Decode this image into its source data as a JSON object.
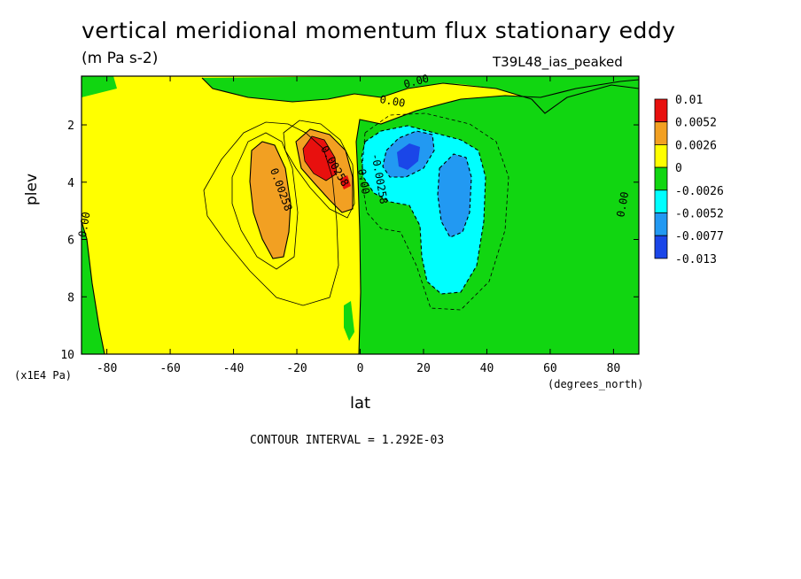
{
  "chart_data": {
    "type": "contour",
    "title": "vertical meridional momentum flux stationary eddy",
    "units": "(m Pa s-2)",
    "run_label": "T39L48_ias_peaked",
    "xlabel": "lat",
    "x_units": "(degrees_north)",
    "ylabel": "plev",
    "y_units": "(x1E4 Pa)",
    "xlim": [
      -88,
      88
    ],
    "ylim": [
      10,
      0.3
    ],
    "x_ticks": [
      -80,
      -60,
      -40,
      -20,
      0,
      20,
      40,
      60,
      80
    ],
    "y_ticks": [
      2,
      4,
      6,
      8,
      10
    ],
    "contour_interval_text": "CONTOUR INTERVAL = 1.292E-03",
    "legend": {
      "labels": [
        "0.01",
        "0.0052",
        "0.0026",
        "0",
        "-0.0026",
        "-0.0052",
        "-0.0077",
        "-0.013"
      ],
      "colors": [
        "#e8100e",
        "#f2a022",
        "#ffff00",
        "#11d611",
        "#00ffff",
        "#2299f2",
        "#1a46e8"
      ]
    },
    "contour_labels": [
      {
        "text": "0.00",
        "x": 18,
        "y": 0.6
      },
      {
        "text": "0.00",
        "x": 10,
        "y": 1.3
      },
      {
        "text": "0.00",
        "x": -86,
        "y": 5.5
      },
      {
        "text": "0.00",
        "x": 84,
        "y": 4.8
      },
      {
        "text": "0.00258",
        "x": -26,
        "y": 4.3
      },
      {
        "text": "0.00258",
        "x": -9,
        "y": 3.5
      },
      {
        "text": "-0.00258",
        "x": 5,
        "y": 3.9
      },
      {
        "text": "0.00",
        "x": 0,
        "y": 4.0
      }
    ]
  },
  "labels": {
    "title": "vertical meridional momentum flux stationary eddy",
    "units": "(m Pa s-2)",
    "run": "T39L48_ias_peaked",
    "ylabel": "plev",
    "xlabel": "lat",
    "yunits": "(x1E4 Pa)",
    "xunits": "(degrees_north)",
    "cint": "CONTOUR INTERVAL = 1.292E-03"
  }
}
